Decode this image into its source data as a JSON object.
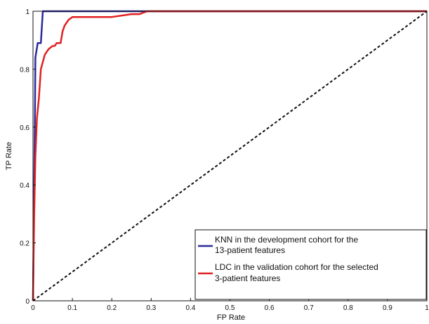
{
  "chart_data": {
    "type": "line",
    "xlabel": "FP Rate",
    "ylabel": "TP Rate",
    "xlim": [
      0,
      1
    ],
    "ylim": [
      0,
      1
    ],
    "x_ticks": [
      "0",
      "0.1",
      "0.2",
      "0.3",
      "0.4",
      "0.5",
      "0.6",
      "0.7",
      "0.8",
      "0.9",
      "1"
    ],
    "y_ticks": [
      "0",
      "0.2",
      "0.4",
      "0.6",
      "0.8",
      "1"
    ],
    "grid": false,
    "legend_position": "bottom-right",
    "series": [
      {
        "name": "KNN in the development cohort for the 13-patient features",
        "legend_lines": [
          "KNN in the development cohort for the",
          "13-patient features"
        ],
        "color": "#2b2b9e",
        "style": "solid",
        "x": [
          0,
          0.005,
          0.006,
          0.012,
          0.013,
          0.02,
          0.025,
          1
        ],
        "y": [
          0,
          0.65,
          0.84,
          0.89,
          0.89,
          0.89,
          1,
          1
        ]
      },
      {
        "name": "LDC in the validation cohort for the selected 3-patient features",
        "legend_lines": [
          "LDC in the validation cohort for the selected",
          "3-patient features"
        ],
        "color": "#e02020",
        "style": "solid",
        "x": [
          0,
          0.003,
          0.006,
          0.01,
          0.015,
          0.02,
          0.03,
          0.04,
          0.05,
          0.055,
          0.06,
          0.065,
          0.07,
          0.075,
          0.08,
          0.085,
          0.09,
          0.1,
          0.12,
          0.15,
          0.2,
          0.25,
          0.27,
          0.29,
          0.3,
          1
        ],
        "y": [
          0,
          0.3,
          0.5,
          0.63,
          0.7,
          0.8,
          0.85,
          0.87,
          0.88,
          0.88,
          0.89,
          0.89,
          0.89,
          0.93,
          0.95,
          0.96,
          0.97,
          0.98,
          0.98,
          0.98,
          0.98,
          0.99,
          0.99,
          1,
          1,
          1
        ]
      },
      {
        "name": "",
        "color": "#111111",
        "style": "dashed",
        "x": [
          0,
          1
        ],
        "y": [
          0,
          1
        ]
      }
    ]
  }
}
